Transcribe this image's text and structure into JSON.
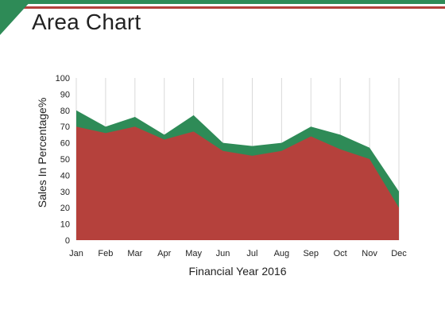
{
  "header": {
    "title": "Area Chart"
  },
  "colors": {
    "accent_green": "#2e8b57",
    "accent_red": "#b5413c",
    "grid": "#d9d9d9"
  },
  "chart_data": {
    "type": "area",
    "categories": [
      "Jan",
      "Feb",
      "Mar",
      "Apr",
      "May",
      "Jun",
      "Jul",
      "Aug",
      "Sep",
      "Oct",
      "Nov",
      "Dec"
    ],
    "series": [
      {
        "color": "#2e8b57",
        "values": [
          80,
          70,
          76,
          65,
          77,
          60,
          58,
          60,
          70,
          65,
          57,
          30
        ]
      },
      {
        "color": "#b5413c",
        "values": [
          70,
          66,
          70,
          62,
          67,
          55,
          52,
          55,
          64,
          56,
          50,
          20
        ]
      }
    ],
    "xlabel": "Financial Year 2016",
    "ylabel": "Sales In Percentage%",
    "ylim": [
      0,
      100
    ],
    "yticks": [
      0,
      10,
      20,
      30,
      40,
      50,
      60,
      70,
      80,
      90,
      100
    ],
    "grid": "vertical"
  }
}
